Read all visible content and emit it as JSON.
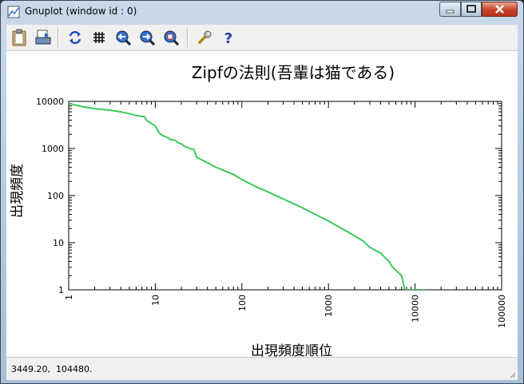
{
  "window": {
    "title": "Gnuplot (window id : 0)"
  },
  "toolbar": {
    "buttons": [
      {
        "name": "clipboard-copy-button",
        "icon": "clipboard-icon"
      },
      {
        "name": "print-button",
        "icon": "print-icon"
      },
      {
        "name": "replot-button",
        "icon": "replot-icon"
      },
      {
        "name": "grid-button",
        "icon": "grid-icon"
      },
      {
        "name": "zoom-previous-button",
        "icon": "arrow-left-icon"
      },
      {
        "name": "zoom-next-button",
        "icon": "arrow-right-icon"
      },
      {
        "name": "autoscale-button",
        "icon": "autoscale-icon"
      },
      {
        "name": "options-button",
        "icon": "wrench-icon"
      },
      {
        "name": "help-button",
        "icon": "help-icon"
      }
    ]
  },
  "status": {
    "text": "3449.20,  104480."
  },
  "colors": {
    "series": "#3ec95e",
    "axis": "#000000"
  },
  "chart_data": {
    "type": "line",
    "title": "Zipfの法則(吾輩は猫である)",
    "xlabel": "出現頻度順位",
    "ylabel": "出現頻度",
    "xscale": "log",
    "yscale": "log",
    "xlim": [
      1,
      100000
    ],
    "ylim": [
      1,
      10000
    ],
    "grid": false,
    "legend": "none",
    "x_ticks": [
      "1",
      "10",
      "100",
      "1000",
      "10000",
      "100000"
    ],
    "y_ticks": [
      "1",
      "10",
      "100",
      "1000",
      "10000"
    ],
    "series": [
      {
        "values": [
          [
            1,
            9000
          ],
          [
            1.5,
            7600
          ],
          [
            2,
            7000
          ],
          [
            3,
            6500
          ],
          [
            4,
            6000
          ],
          [
            5,
            5500
          ],
          [
            6,
            5000
          ],
          [
            7.5,
            4700
          ],
          [
            8,
            3900
          ],
          [
            9,
            3400
          ],
          [
            10,
            3000
          ],
          [
            11,
            2200
          ],
          [
            12,
            1900
          ],
          [
            14,
            1700
          ],
          [
            15,
            1550
          ],
          [
            17,
            1500
          ],
          [
            18,
            1350
          ],
          [
            20,
            1250
          ],
          [
            22,
            1100
          ],
          [
            25,
            1000
          ],
          [
            28,
            950
          ],
          [
            30,
            650
          ],
          [
            40,
            500
          ],
          [
            50,
            400
          ],
          [
            60,
            350
          ],
          [
            80,
            280
          ],
          [
            100,
            220
          ],
          [
            150,
            150
          ],
          [
            200,
            120
          ],
          [
            300,
            85
          ],
          [
            500,
            55
          ],
          [
            700,
            40
          ],
          [
            1000,
            29
          ],
          [
            1500,
            19
          ],
          [
            2000,
            14
          ],
          [
            2500,
            11
          ],
          [
            3000,
            8
          ],
          [
            4000,
            6
          ],
          [
            5000,
            4
          ],
          [
            5500,
            3
          ],
          [
            7000,
            2
          ],
          [
            7600,
            1
          ]
        ]
      }
    ]
  }
}
